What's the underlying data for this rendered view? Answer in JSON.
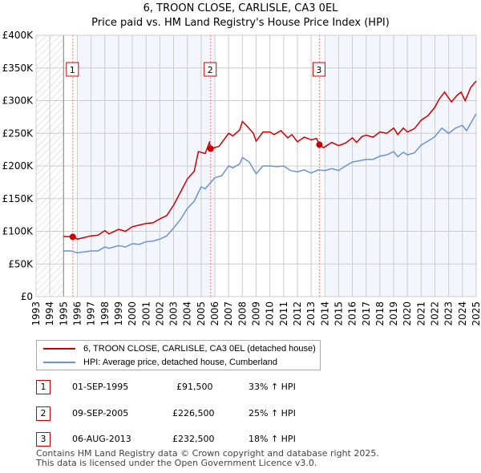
{
  "chart_data": {
    "type": "line",
    "title": "6, TROON CLOSE, CARLISLE, CA3 0EL",
    "subtitle": "Price paid vs. HM Land Registry's House Price Index (HPI)",
    "xlim": [
      1993,
      2025
    ],
    "ylim": [
      0,
      400000
    ],
    "yticks": [
      {
        "v": 0,
        "label": "£0"
      },
      {
        "v": 50000,
        "label": "£50K"
      },
      {
        "v": 100000,
        "label": "£100K"
      },
      {
        "v": 150000,
        "label": "£150K"
      },
      {
        "v": 200000,
        "label": "£200K"
      },
      {
        "v": 250000,
        "label": "£250K"
      },
      {
        "v": 300000,
        "label": "£300K"
      },
      {
        "v": 350000,
        "label": "£350K"
      },
      {
        "v": 400000,
        "label": "£400K"
      }
    ],
    "xticks": [
      "1993",
      "1994",
      "1995",
      "1996",
      "1997",
      "1998",
      "1999",
      "2000",
      "2001",
      "2002",
      "2003",
      "2004",
      "2005",
      "2006",
      "2007",
      "2008",
      "2009",
      "2010",
      "2011",
      "2012",
      "2013",
      "2014",
      "2015",
      "2016",
      "2017",
      "2018",
      "2019",
      "2020",
      "2021",
      "2022",
      "2023",
      "2024",
      "2025"
    ],
    "series": [
      {
        "name": "6, TROON CLOSE, CARLISLE, CA3 0EL (detached house)",
        "color": "#cc0000",
        "points": [
          [
            1995,
            92000
          ],
          [
            1995.7,
            91500
          ],
          [
            1996,
            88000
          ],
          [
            1997,
            93000
          ],
          [
            1997.5,
            94000
          ],
          [
            1998,
            101000
          ],
          [
            1998.3,
            96000
          ],
          [
            1999,
            103000
          ],
          [
            1999.5,
            100000
          ],
          [
            2000,
            107000
          ],
          [
            2001,
            112000
          ],
          [
            2001.5,
            113000
          ],
          [
            2002,
            119000
          ],
          [
            2002.5,
            124000
          ],
          [
            2003,
            140000
          ],
          [
            2003.5,
            160000
          ],
          [
            2004,
            180000
          ],
          [
            2004.5,
            192000
          ],
          [
            2004.8,
            222000
          ],
          [
            2005.3,
            219000
          ],
          [
            2005.6,
            236000
          ],
          [
            2005.7,
            226500
          ],
          [
            2006.3,
            230000
          ],
          [
            2007,
            250000
          ],
          [
            2007.3,
            246000
          ],
          [
            2007.8,
            255000
          ],
          [
            2008,
            268000
          ],
          [
            2008.3,
            262000
          ],
          [
            2008.8,
            250000
          ],
          [
            2009,
            238000
          ],
          [
            2009.5,
            252000
          ],
          [
            2010,
            252000
          ],
          [
            2010.3,
            248000
          ],
          [
            2010.8,
            254000
          ],
          [
            2011.3,
            243000
          ],
          [
            2011.6,
            248000
          ],
          [
            2012,
            237000
          ],
          [
            2012.5,
            244000
          ],
          [
            2013,
            240000
          ],
          [
            2013.4,
            242000
          ],
          [
            2013.6,
            232500
          ],
          [
            2013.9,
            228000
          ],
          [
            2014.5,
            236000
          ],
          [
            2015,
            231000
          ],
          [
            2015.5,
            235000
          ],
          [
            2016,
            243000
          ],
          [
            2016.3,
            236000
          ],
          [
            2016.7,
            245000
          ],
          [
            2017,
            247000
          ],
          [
            2017.5,
            244000
          ],
          [
            2018,
            252000
          ],
          [
            2018.5,
            250000
          ],
          [
            2019,
            258000
          ],
          [
            2019.3,
            248000
          ],
          [
            2019.7,
            258000
          ],
          [
            2020,
            252000
          ],
          [
            2020.5,
            257000
          ],
          [
            2021,
            270000
          ],
          [
            2021.5,
            277000
          ],
          [
            2022,
            290000
          ],
          [
            2022.3,
            302000
          ],
          [
            2022.7,
            313000
          ],
          [
            2023.2,
            298000
          ],
          [
            2023.6,
            308000
          ],
          [
            2023.9,
            313000
          ],
          [
            2024.2,
            300000
          ],
          [
            2024.6,
            320000
          ],
          [
            2025,
            330000
          ]
        ]
      },
      {
        "name": "HPI: Average price, detached house, Cumberland",
        "color": "#6a93d4",
        "points": [
          [
            1995,
            70000
          ],
          [
            1995.5,
            70000
          ],
          [
            1996,
            67000
          ],
          [
            1997,
            70000
          ],
          [
            1997.5,
            70000
          ],
          [
            1998,
            76000
          ],
          [
            1998.3,
            74000
          ],
          [
            1999,
            78000
          ],
          [
            1999.5,
            76000
          ],
          [
            2000,
            81000
          ],
          [
            2000.5,
            80000
          ],
          [
            2001,
            84000
          ],
          [
            2001.5,
            85000
          ],
          [
            2002,
            88000
          ],
          [
            2002.5,
            93000
          ],
          [
            2003,
            105000
          ],
          [
            2003.5,
            118000
          ],
          [
            2004,
            135000
          ],
          [
            2004.5,
            146000
          ],
          [
            2005,
            168000
          ],
          [
            2005.3,
            165000
          ],
          [
            2006,
            182000
          ],
          [
            2006.5,
            185000
          ],
          [
            2007,
            200000
          ],
          [
            2007.3,
            197000
          ],
          [
            2007.8,
            203000
          ],
          [
            2008,
            213000
          ],
          [
            2008.5,
            206000
          ],
          [
            2009,
            188000
          ],
          [
            2009.5,
            200000
          ],
          [
            2010,
            200000
          ],
          [
            2010.5,
            199000
          ],
          [
            2011,
            200000
          ],
          [
            2011.5,
            193000
          ],
          [
            2012,
            191000
          ],
          [
            2012.5,
            194000
          ],
          [
            2013,
            189000
          ],
          [
            2013.5,
            194000
          ],
          [
            2014,
            193000
          ],
          [
            2014.5,
            196000
          ],
          [
            2015,
            193000
          ],
          [
            2015.5,
            200000
          ],
          [
            2016,
            206000
          ],
          [
            2016.5,
            208000
          ],
          [
            2017,
            210000
          ],
          [
            2017.5,
            210000
          ],
          [
            2018,
            215000
          ],
          [
            2018.5,
            217000
          ],
          [
            2019,
            222000
          ],
          [
            2019.3,
            214000
          ],
          [
            2019.7,
            221000
          ],
          [
            2020,
            217000
          ],
          [
            2020.5,
            220000
          ],
          [
            2021,
            232000
          ],
          [
            2021.5,
            238000
          ],
          [
            2022,
            245000
          ],
          [
            2022.5,
            258000
          ],
          [
            2023,
            250000
          ],
          [
            2023.5,
            258000
          ],
          [
            2024,
            262000
          ],
          [
            2024.3,
            254000
          ],
          [
            2025,
            280000
          ]
        ]
      }
    ],
    "sales": [
      {
        "label": "1",
        "x": 1995.67,
        "y": 91500
      },
      {
        "label": "2",
        "x": 2005.69,
        "y": 226500
      },
      {
        "label": "3",
        "x": 2013.6,
        "y": 232500
      }
    ]
  },
  "legend": {
    "property": "6, TROON CLOSE, CARLISLE, CA3 0EL (detached house)",
    "hpi": "HPI: Average price, detached house, Cumberland"
  },
  "table": [
    {
      "num": "1",
      "date": "01-SEP-1995",
      "price": "£91,500",
      "hpi": "33% ↑ HPI"
    },
    {
      "num": "2",
      "date": "09-SEP-2005",
      "price": "£226,500",
      "hpi": "25% ↑ HPI"
    },
    {
      "num": "3",
      "date": "06-AUG-2013",
      "price": "£232,500",
      "hpi": "18% ↑ HPI"
    }
  ],
  "footer": {
    "line1": "Contains HM Land Registry data © Crown copyright and database right 2025.",
    "line2": "This data is licensed under the Open Government Licence v3.0."
  }
}
